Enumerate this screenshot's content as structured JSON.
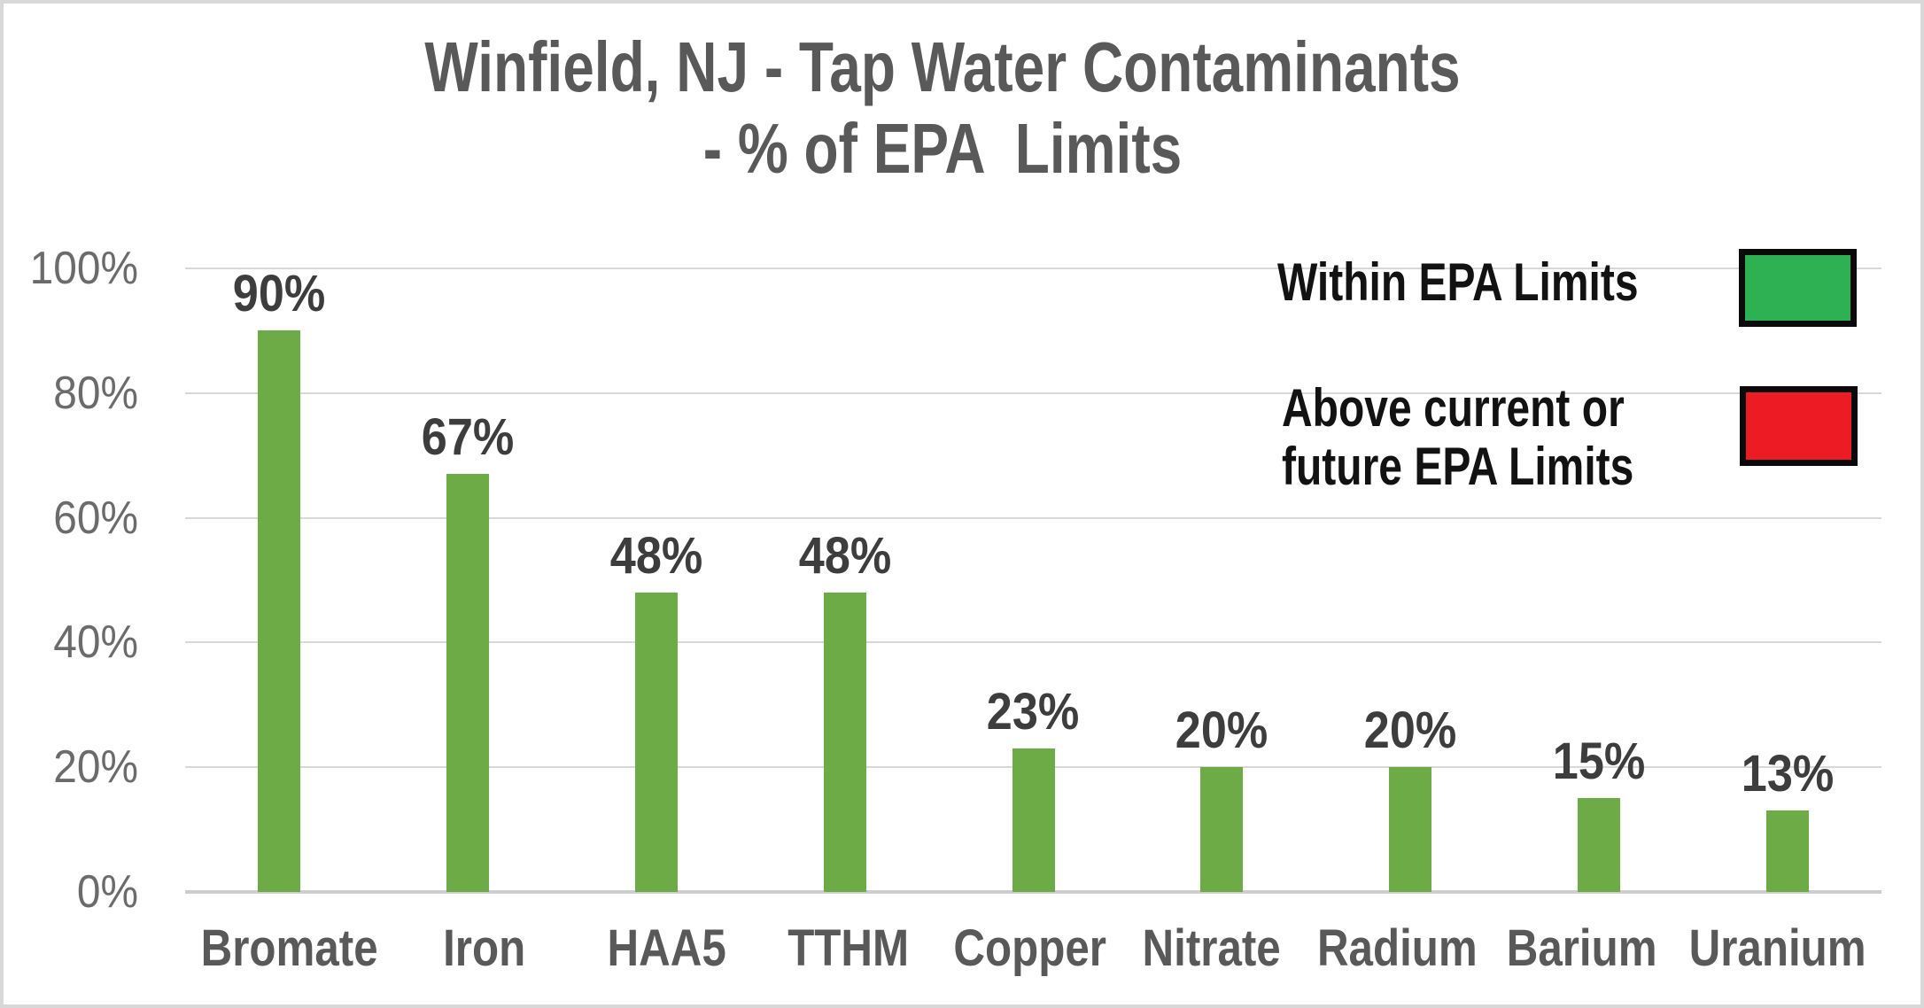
{
  "chart_data": {
    "type": "bar",
    "title_lines": [
      "Winfield, NJ - Tap Water Contaminants",
      "- % of EPA  Limits"
    ],
    "categories": [
      "Bromate",
      "Iron",
      "HAA5",
      "TTHM",
      "Copper",
      "Nitrate",
      "Radium",
      "Barium",
      "Uranium"
    ],
    "values": [
      90,
      67,
      48,
      48,
      23,
      20,
      20,
      15,
      13
    ],
    "data_labels": [
      "90%",
      "67%",
      "48%",
      "48%",
      "23%",
      "20%",
      "20%",
      "15%",
      "13%"
    ],
    "ytick_labels": [
      "100%",
      "80%",
      "60%",
      "40%",
      "20%",
      "0%"
    ],
    "ytick_values": [
      100,
      80,
      60,
      40,
      20,
      0
    ],
    "ylim": [
      0,
      100
    ],
    "grid": true,
    "legend_position": "upper-right",
    "bar_color": "#6cab45",
    "legend": {
      "within": {
        "label": "Within EPA Limits",
        "color": "#2db152"
      },
      "above": {
        "line1": "Above current or",
        "line2": "future EPA Limits",
        "color": "#ec1b24"
      }
    }
  },
  "colors": {
    "title_text": "#595959",
    "axis_text": "#6b6b6b",
    "data_label_text": "#3d3d3d",
    "gridline": "#d8d8d8",
    "border": "#d8d8d8",
    "background": "#ffffff"
  }
}
